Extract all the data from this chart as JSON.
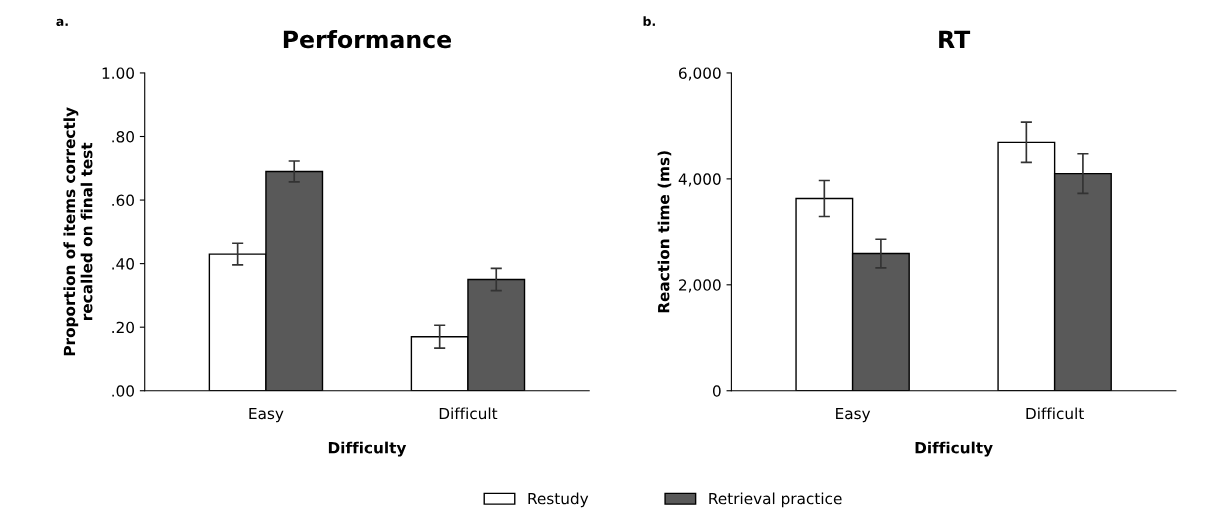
{
  "chart_data": [
    {
      "type": "bar",
      "title": "Performance",
      "annotations": [
        "a."
      ],
      "xlabel": "Difficulty",
      "ylabel": "Proportion of items correctly\nrecalled on final test",
      "categories": [
        "Easy",
        "Difficult"
      ],
      "series": [
        {
          "name": "Restudy",
          "color": "#ffffff",
          "values": [
            0.43,
            0.17
          ],
          "errors": [
            0.034,
            0.036
          ]
        },
        {
          "name": "Retrieval practice",
          "color": "#595959",
          "values": [
            0.69,
            0.35
          ],
          "errors": [
            0.033,
            0.035
          ]
        }
      ],
      "ylim": [
        0,
        1
      ],
      "yticks": [
        {
          "value": 0,
          "label": ".00"
        },
        {
          "value": 0.2,
          "label": ".20"
        },
        {
          "value": 0.4,
          "label": ".40"
        },
        {
          "value": 0.6,
          "label": ".60"
        },
        {
          "value": 0.8,
          "label": ".80"
        },
        {
          "value": 1,
          "label": "1.00"
        }
      ],
      "grid": false,
      "legend": "bottom"
    },
    {
      "type": "bar",
      "title": "RT",
      "annotations": [
        "b."
      ],
      "xlabel": "Difficulty",
      "ylabel": "Reaction time (ms)",
      "categories": [
        "Easy",
        "Difficult"
      ],
      "series": [
        {
          "color": "#ffffff",
          "values": [
            3630,
            4690
          ],
          "errors": [
            340,
            380
          ]
        },
        {
          "color": "#595959",
          "values": [
            2590,
            4100
          ],
          "errors": [
            270,
            375
          ]
        }
      ],
      "ylim": [
        0,
        6000
      ],
      "yticks": [
        0,
        {
          "value": 2000,
          "label": "2,000"
        },
        {
          "value": 4000,
          "label": "4,000"
        },
        {
          "value": 6000,
          "label": "6,000"
        }
      ],
      "grid": false
    }
  ]
}
